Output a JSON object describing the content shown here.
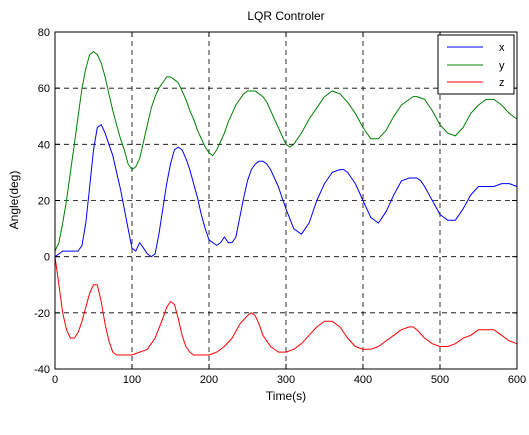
{
  "chart_data": {
    "type": "line",
    "title": "LQR Controler",
    "xlabel": "Time(s)",
    "ylabel": "Angle(deg)",
    "xlim": [
      0,
      600
    ],
    "ylim": [
      -40,
      80
    ],
    "xticks": [
      0,
      100,
      200,
      300,
      400,
      500,
      600
    ],
    "yticks": [
      -40,
      -20,
      0,
      20,
      40,
      60,
      80
    ],
    "grid": true,
    "legend_position": "top-right",
    "series": [
      {
        "name": "x",
        "color": "#0000ff",
        "x": [
          0,
          5,
          10,
          15,
          20,
          25,
          30,
          35,
          40,
          45,
          50,
          55,
          60,
          65,
          70,
          75,
          80,
          85,
          90,
          95,
          100,
          105,
          110,
          115,
          120,
          125,
          130,
          135,
          140,
          145,
          150,
          155,
          160,
          165,
          170,
          175,
          180,
          185,
          190,
          195,
          200,
          205,
          210,
          215,
          220,
          225,
          230,
          235,
          240,
          245,
          250,
          255,
          260,
          265,
          270,
          275,
          280,
          285,
          290,
          295,
          300,
          310,
          320,
          330,
          340,
          350,
          360,
          370,
          375,
          380,
          390,
          400,
          410,
          420,
          430,
          440,
          450,
          460,
          470,
          475,
          480,
          490,
          500,
          510,
          520,
          530,
          540,
          550,
          560,
          570,
          580,
          590,
          600
        ],
        "y": [
          0,
          1,
          2,
          2,
          2,
          2,
          2,
          4,
          12,
          25,
          38,
          46,
          47,
          44,
          40,
          36,
          30,
          24,
          17,
          10,
          3,
          2,
          5,
          3,
          1,
          0,
          1,
          8,
          17,
          26,
          33,
          38,
          39,
          38,
          35,
          31,
          26,
          21,
          15,
          10,
          6,
          5,
          4,
          5,
          7,
          5,
          5,
          7,
          14,
          21,
          27,
          31,
          33,
          34,
          34,
          33,
          31,
          28,
          25,
          21,
          17,
          10,
          8,
          12,
          20,
          26,
          30,
          31,
          31,
          30,
          26,
          20,
          14,
          12,
          16,
          22,
          27,
          28,
          28,
          27,
          25,
          20,
          15,
          13,
          13,
          17,
          22,
          25,
          25,
          25,
          26,
          26,
          25
        ]
      },
      {
        "name": "y",
        "color": "#008000",
        "x": [
          0,
          5,
          10,
          15,
          20,
          25,
          30,
          35,
          40,
          45,
          50,
          55,
          60,
          65,
          70,
          75,
          80,
          85,
          90,
          95,
          100,
          105,
          110,
          115,
          120,
          125,
          130,
          135,
          140,
          145,
          150,
          155,
          160,
          165,
          170,
          175,
          180,
          185,
          190,
          195,
          200,
          205,
          210,
          215,
          220,
          225,
          230,
          235,
          240,
          245,
          250,
          255,
          260,
          265,
          270,
          275,
          280,
          285,
          290,
          295,
          300,
          305,
          310,
          320,
          330,
          340,
          350,
          360,
          370,
          380,
          390,
          400,
          410,
          420,
          430,
          440,
          450,
          460,
          465,
          470,
          480,
          490,
          500,
          510,
          520,
          530,
          540,
          550,
          560,
          565,
          570,
          580,
          590,
          600
        ],
        "y": [
          2,
          5,
          12,
          20,
          30,
          40,
          50,
          60,
          67,
          72,
          73,
          72,
          69,
          64,
          58,
          52,
          47,
          42,
          38,
          33,
          31,
          32,
          35,
          41,
          47,
          53,
          57,
          60,
          62,
          64,
          64,
          63,
          62,
          59,
          56,
          52,
          49,
          45,
          42,
          39,
          37,
          36,
          38,
          41,
          44,
          48,
          51,
          54,
          56,
          58,
          59,
          59,
          59,
          58,
          57,
          55,
          52,
          49,
          46,
          43,
          40,
          39,
          40,
          44,
          49,
          53,
          57,
          59,
          58,
          55,
          51,
          46,
          42,
          42,
          45,
          50,
          54,
          56,
          57,
          57,
          56,
          52,
          47,
          44,
          43,
          46,
          51,
          54,
          56,
          56,
          56,
          54,
          51,
          49
        ]
      },
      {
        "name": "z",
        "color": "#ff0000",
        "x": [
          0,
          5,
          10,
          15,
          20,
          25,
          30,
          35,
          40,
          45,
          50,
          55,
          60,
          65,
          70,
          75,
          80,
          85,
          90,
          95,
          100,
          110,
          120,
          130,
          140,
          145,
          150,
          155,
          160,
          165,
          170,
          175,
          180,
          190,
          200,
          210,
          220,
          230,
          240,
          250,
          255,
          260,
          265,
          270,
          280,
          290,
          300,
          310,
          320,
          330,
          340,
          350,
          360,
          370,
          380,
          390,
          400,
          410,
          420,
          430,
          440,
          450,
          460,
          465,
          470,
          480,
          490,
          500,
          510,
          520,
          530,
          540,
          550,
          560,
          565,
          570,
          580,
          590,
          600
        ],
        "y": [
          0,
          -10,
          -20,
          -26,
          -29,
          -29,
          -27,
          -23,
          -18,
          -13,
          -10,
          -10,
          -16,
          -24,
          -30,
          -34,
          -35,
          -35,
          -35,
          -35,
          -35,
          -34,
          -33,
          -29,
          -22,
          -18,
          -16,
          -17,
          -22,
          -28,
          -32,
          -34,
          -35,
          -35,
          -35,
          -34,
          -32,
          -29,
          -24,
          -21,
          -20,
          -21,
          -24,
          -28,
          -32,
          -34,
          -34,
          -33,
          -31,
          -28,
          -25,
          -23,
          -23,
          -25,
          -29,
          -32,
          -33,
          -33,
          -32,
          -30,
          -28,
          -26,
          -25,
          -25,
          -26,
          -29,
          -31,
          -32,
          -32,
          -31,
          -29,
          -28,
          -26,
          -26,
          -26,
          -26,
          -28,
          -30,
          -31
        ]
      }
    ]
  }
}
